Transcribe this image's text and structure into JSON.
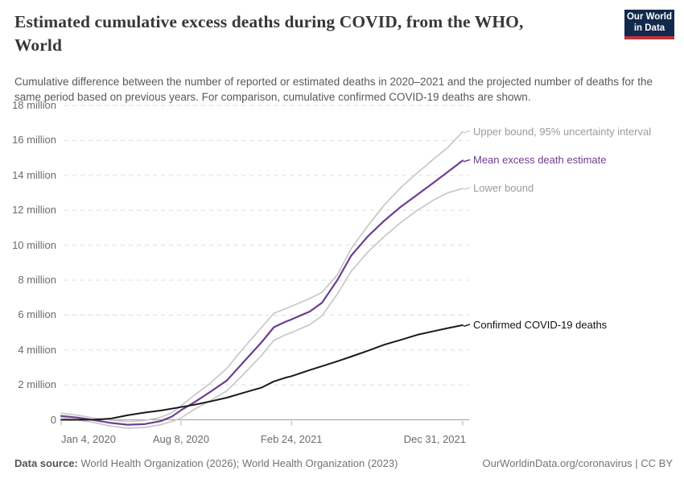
{
  "header": {
    "title_line1": "Estimated cumulative excess deaths during COVID, from the WHO,",
    "title_line2": "World",
    "subtitle": "Cumulative difference between the number of reported or estimated deaths in 2020–2021 and the projected number of deaths for the same period based on previous years. For comparison, cumulative confirmed COVID-19 deaths are shown.",
    "logo": {
      "line1": "Our World",
      "line2": "in Data",
      "bg_color": "#12294b",
      "accent_color": "#c0343a"
    }
  },
  "chart_data": {
    "type": "line",
    "title": "Estimated cumulative excess deaths during COVID, from the WHO, World",
    "x_axis": "date",
    "x_unit_days_from": "Jan 4, 2020",
    "x_range_days": [
      0,
      727
    ],
    "ylabel": "",
    "values_unit": "million deaths",
    "ylim": [
      0,
      18
    ],
    "grid": "dashed horizontal gridlines, solid zero axis",
    "legend_position": "right edge line labels",
    "y_ticks": [
      {
        "value": 0,
        "label": "0"
      },
      {
        "value": 2,
        "label": "2 million"
      },
      {
        "value": 4,
        "label": "4 million"
      },
      {
        "value": 6,
        "label": "6 million"
      },
      {
        "value": 8,
        "label": "8 million"
      },
      {
        "value": 10,
        "label": "10 million"
      },
      {
        "value": 12,
        "label": "12 million"
      },
      {
        "value": 14,
        "label": "14 million"
      },
      {
        "value": 16,
        "label": "16 million"
      },
      {
        "value": 18,
        "label": "18 million"
      }
    ],
    "x_ticks": [
      {
        "day": 0,
        "label": "Jan 4, 2020"
      },
      {
        "day": 217,
        "label": "Aug 8, 2020"
      },
      {
        "day": 417,
        "label": "Feb 24, 2021"
      },
      {
        "day": 727,
        "label": "Dec 31, 2021"
      }
    ],
    "series": [
      {
        "name": "upper_bound",
        "label": "Upper bound, 95% uncertainty interval",
        "color": "#c8c8c8",
        "label_color": "#9b9b9b",
        "width": 1.7,
        "points_day_millions": [
          [
            0,
            0.38
          ],
          [
            30,
            0.26
          ],
          [
            60,
            0.1
          ],
          [
            90,
            -0.02
          ],
          [
            120,
            -0.1
          ],
          [
            150,
            -0.04
          ],
          [
            180,
            0.14
          ],
          [
            200,
            0.4
          ],
          [
            217,
            0.8
          ],
          [
            241,
            1.4
          ],
          [
            270,
            2.1
          ],
          [
            300,
            2.95
          ],
          [
            330,
            4.1
          ],
          [
            363,
            5.3
          ],
          [
            385,
            6.1
          ],
          [
            405,
            6.35
          ],
          [
            417,
            6.5
          ],
          [
            450,
            6.95
          ],
          [
            472,
            7.3
          ],
          [
            500,
            8.3
          ],
          [
            525,
            9.8
          ],
          [
            555,
            11.1
          ],
          [
            585,
            12.3
          ],
          [
            615,
            13.3
          ],
          [
            645,
            14.15
          ],
          [
            675,
            14.95
          ],
          [
            700,
            15.6
          ],
          [
            727,
            16.5
          ]
        ]
      },
      {
        "name": "mean_excess_deaths",
        "label": "Mean excess death estimate",
        "color": "#6d3e91",
        "label_color": "#6d3e91",
        "width": 2.2,
        "points_day_millions": [
          [
            0,
            0.22
          ],
          [
            30,
            0.12
          ],
          [
            60,
            -0.02
          ],
          [
            90,
            -0.18
          ],
          [
            120,
            -0.28
          ],
          [
            150,
            -0.25
          ],
          [
            180,
            -0.08
          ],
          [
            200,
            0.18
          ],
          [
            217,
            0.55
          ],
          [
            241,
            1.0
          ],
          [
            270,
            1.6
          ],
          [
            300,
            2.25
          ],
          [
            330,
            3.3
          ],
          [
            363,
            4.45
          ],
          [
            385,
            5.3
          ],
          [
            405,
            5.6
          ],
          [
            417,
            5.75
          ],
          [
            450,
            6.2
          ],
          [
            472,
            6.7
          ],
          [
            500,
            8.0
          ],
          [
            525,
            9.4
          ],
          [
            555,
            10.5
          ],
          [
            585,
            11.4
          ],
          [
            615,
            12.2
          ],
          [
            645,
            12.9
          ],
          [
            675,
            13.6
          ],
          [
            700,
            14.2
          ],
          [
            727,
            14.85
          ]
        ]
      },
      {
        "name": "lower_bound",
        "label": "Lower bound",
        "color": "#c8c8c8",
        "label_color": "#9b9b9b",
        "width": 1.7,
        "points_day_millions": [
          [
            0,
            0.12
          ],
          [
            30,
            0.0
          ],
          [
            60,
            -0.16
          ],
          [
            90,
            -0.36
          ],
          [
            120,
            -0.48
          ],
          [
            150,
            -0.44
          ],
          [
            180,
            -0.28
          ],
          [
            200,
            -0.1
          ],
          [
            217,
            0.1
          ],
          [
            241,
            0.6
          ],
          [
            270,
            1.1
          ],
          [
            300,
            1.65
          ],
          [
            330,
            2.6
          ],
          [
            363,
            3.7
          ],
          [
            385,
            4.55
          ],
          [
            405,
            4.85
          ],
          [
            417,
            5.0
          ],
          [
            450,
            5.45
          ],
          [
            472,
            5.95
          ],
          [
            500,
            7.2
          ],
          [
            525,
            8.5
          ],
          [
            555,
            9.6
          ],
          [
            585,
            10.5
          ],
          [
            615,
            11.3
          ],
          [
            645,
            12.0
          ],
          [
            675,
            12.6
          ],
          [
            700,
            13.0
          ],
          [
            727,
            13.25
          ]
        ]
      },
      {
        "name": "confirmed_covid19_deaths",
        "label": "Confirmed COVID-19 deaths",
        "color": "#1a1a1a",
        "label_color": "#111111",
        "width": 2,
        "points_day_millions": [
          [
            0,
            0.0
          ],
          [
            30,
            0.0
          ],
          [
            60,
            0.01
          ],
          [
            90,
            0.07
          ],
          [
            120,
            0.26
          ],
          [
            150,
            0.41
          ],
          [
            180,
            0.53
          ],
          [
            217,
            0.73
          ],
          [
            241,
            0.86
          ],
          [
            270,
            1.05
          ],
          [
            300,
            1.27
          ],
          [
            330,
            1.55
          ],
          [
            363,
            1.85
          ],
          [
            385,
            2.2
          ],
          [
            405,
            2.4
          ],
          [
            417,
            2.5
          ],
          [
            450,
            2.85
          ],
          [
            475,
            3.1
          ],
          [
            500,
            3.35
          ],
          [
            525,
            3.62
          ],
          [
            555,
            3.95
          ],
          [
            585,
            4.3
          ],
          [
            615,
            4.58
          ],
          [
            645,
            4.87
          ],
          [
            675,
            5.08
          ],
          [
            700,
            5.25
          ],
          [
            727,
            5.42
          ]
        ]
      }
    ]
  },
  "footer": {
    "source_label": "Data source:",
    "source_text": " World Health Organization (2026); World Health Organization (2023)",
    "credit": "OurWorldinData.org/coronavirus | CC BY"
  }
}
